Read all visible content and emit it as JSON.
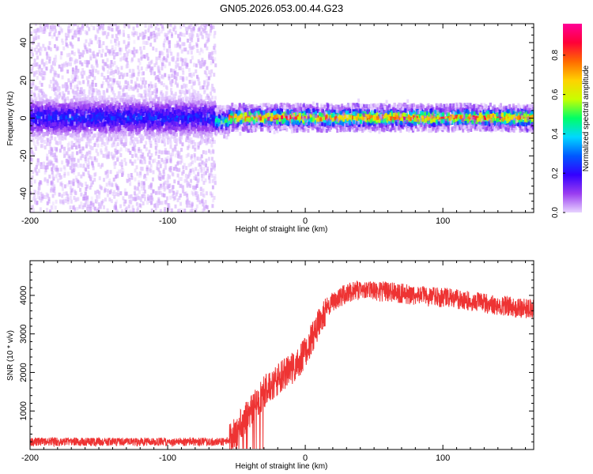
{
  "title": "GN05.2026.053.00.44.G23",
  "chart_data": [
    {
      "type": "heatmap",
      "xlabel": "Height of straight line (km)",
      "ylabel": "Frequency (Hz)",
      "xlim": [
        -200,
        166
      ],
      "ylim": [
        -50,
        50
      ],
      "xticks": [
        -200,
        -100,
        0,
        100
      ],
      "yticks": [
        -40,
        -20,
        0,
        20,
        40
      ],
      "colorbar": {
        "label": "Normalized spectral amplitude",
        "range": [
          0.0,
          0.96
        ],
        "ticks": [
          0.0,
          0.2,
          0.4,
          0.6,
          0.8
        ],
        "tick_labels": [
          "0.0",
          "0.2",
          "0.4",
          "0.6",
          "0.8"
        ],
        "colormap": [
          "#e8d4ff",
          "#9a3df0",
          "#3300ff",
          "#0059ff",
          "#00d8ff",
          "#00ff66",
          "#c8ff00",
          "#ffd200",
          "#ff6a00",
          "#ff0038",
          "#ff0096"
        ]
      },
      "regions": [
        {
          "x": [
            -200,
            -65
          ],
          "center_hz": 0,
          "core_halfwidth_hz": 10,
          "scatter_halfwidth_hz": 50,
          "peak_amplitude": 0.3
        },
        {
          "x": [
            -65,
            -55
          ],
          "center_hz": -2,
          "core_halfwidth_hz": 6,
          "scatter_halfwidth_hz": 8,
          "peak_amplitude": 0.55
        },
        {
          "x": [
            -55,
            166
          ],
          "center_hz": 0,
          "core_halfwidth_hz": 5,
          "scatter_halfwidth_hz": 7,
          "peak_amplitude": 0.95
        }
      ]
    },
    {
      "type": "line",
      "xlabel": "Height of straight line (km)",
      "ylabel": "SNR (10 * v/v)",
      "xlim": [
        -200,
        166
      ],
      "ylim": [
        0,
        4900
      ],
      "xticks": [
        -200,
        -100,
        0,
        100
      ],
      "yticks": [
        1000,
        2000,
        3000,
        4000
      ],
      "color": "#ee3333",
      "series": [
        {
          "x": [
            -200,
            -180,
            -160,
            -140,
            -120,
            -100,
            -80,
            -60,
            -55,
            -50,
            -45,
            -40,
            -35,
            -30,
            -25,
            -20,
            -15,
            -10,
            -5,
            0,
            5,
            10,
            15,
            20,
            25,
            30,
            40,
            50,
            60,
            70,
            80,
            90,
            100,
            110,
            120,
            130,
            140,
            150,
            160,
            166
          ],
          "values": [
            200,
            200,
            200,
            200,
            200,
            200,
            200,
            200,
            250,
            450,
            750,
            950,
            1200,
            1500,
            1650,
            1800,
            1950,
            2100,
            2250,
            2500,
            2900,
            3300,
            3650,
            3850,
            3950,
            4050,
            4150,
            4100,
            4100,
            4050,
            4000,
            3950,
            3950,
            3900,
            3850,
            3800,
            3750,
            3700,
            3650,
            3650
          ]
        }
      ]
    }
  ]
}
